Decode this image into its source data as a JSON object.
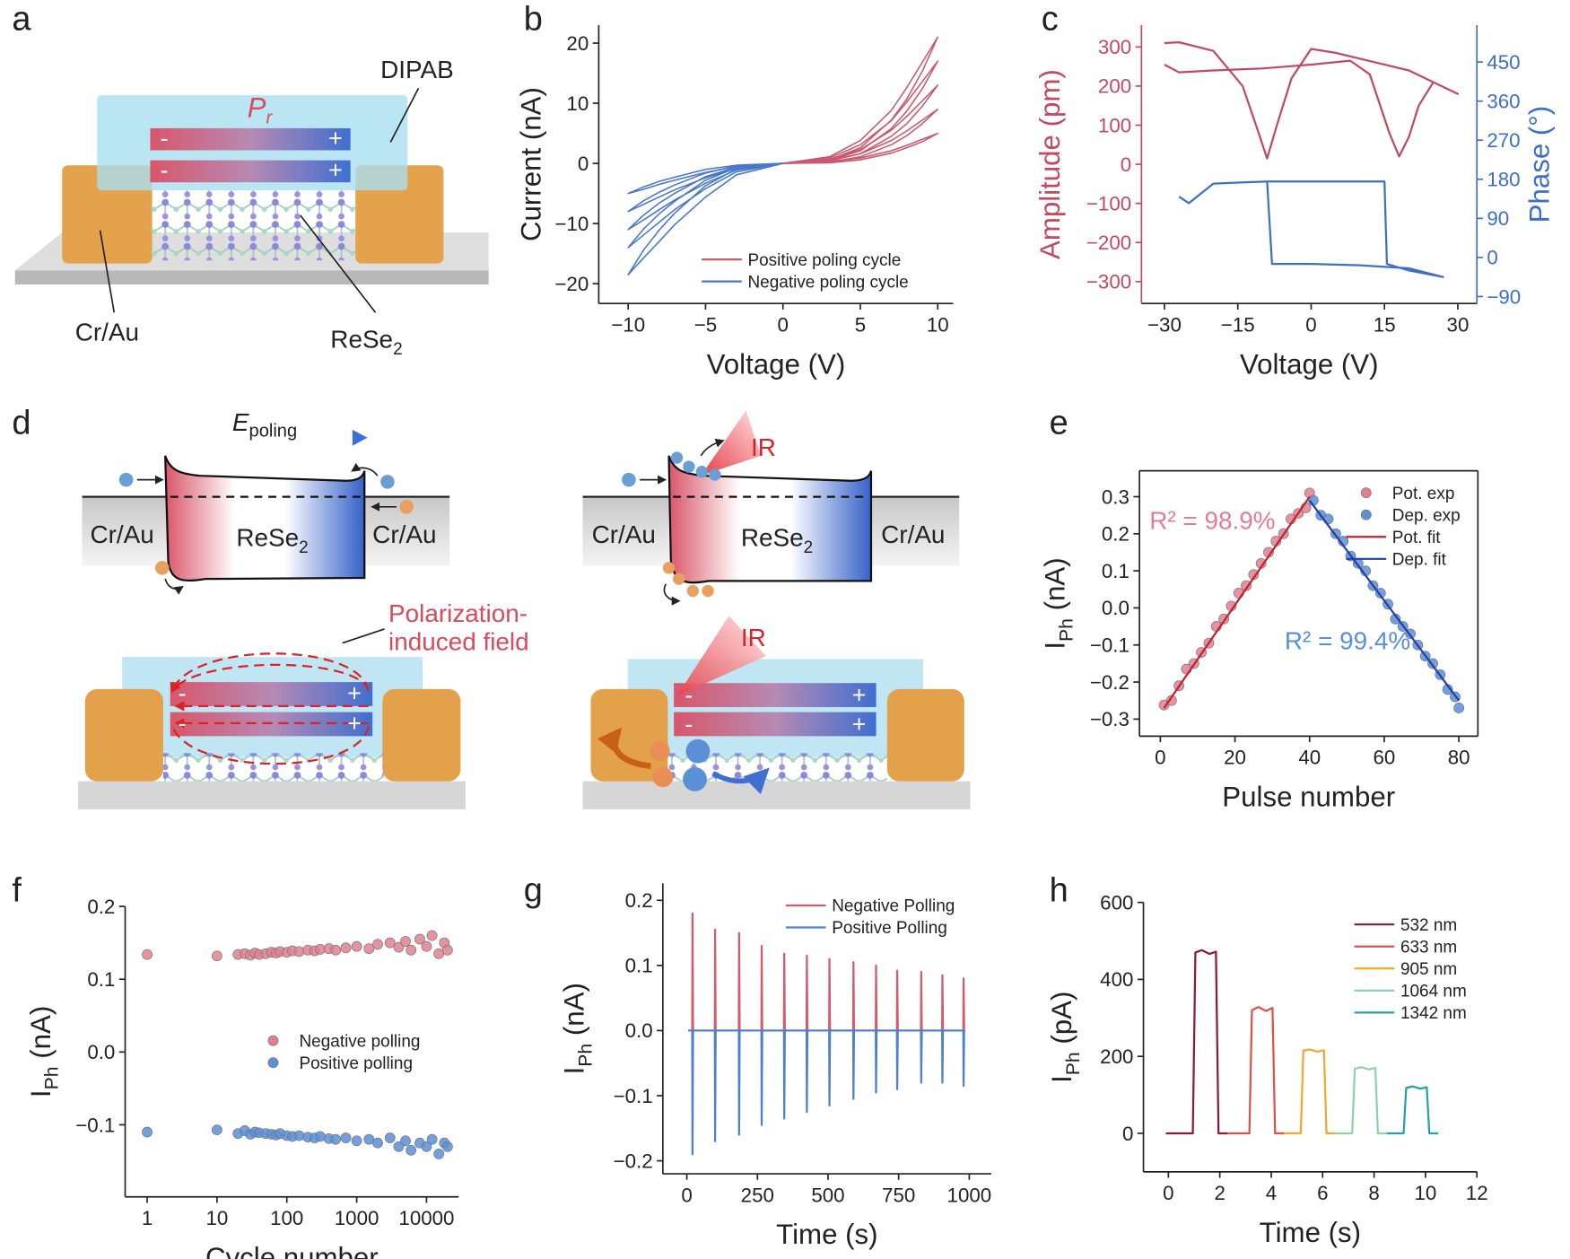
{
  "panel_labels": [
    "a",
    "b",
    "c",
    "d",
    "e",
    "f",
    "g",
    "h"
  ],
  "diagram_a": {
    "top_layer": "DIPAB",
    "polarization": "P",
    "polarization_sub": "r",
    "electrode": "Cr/Au",
    "channel": "ReSe",
    "channel_sub": "2",
    "minus": "-",
    "plus": "+"
  },
  "diagram_d": {
    "field": "E",
    "field_sub": "poling",
    "electrode": "Cr/Au",
    "channel": "ReSe",
    "channel_sub": "2",
    "light": "IR",
    "induced_field": [
      "Polarization-",
      "induced field"
    ],
    "minus": "-",
    "plus": "+"
  },
  "chart_data": [
    {
      "type": "line",
      "xlabel": "Voltage (V)",
      "ylabel": "Current (nA)",
      "xlim": [
        -11.9,
        11
      ],
      "ylim": [
        -23.3,
        23
      ],
      "xticks": [
        {
          "value": -10,
          "label": "−10"
        },
        {
          "value": -5,
          "label": "−5"
        },
        0,
        5,
        10
      ],
      "yticks": [
        20,
        10,
        0,
        {
          "value": -10,
          "label": "−10"
        },
        {
          "value": -20,
          "label": "−20"
        }
      ],
      "legend": "lower right",
      "series": [
        {
          "name": "Positive poling cycle",
          "color": "#c9596e",
          "x": [
            0,
            3,
            5,
            7,
            8,
            9,
            10,
            9,
            8,
            7,
            5,
            3,
            0
          ],
          "loops": [
            [
              0,
              0.1,
              0.6,
              1.7,
              2.6,
              3.6,
              5,
              4,
              3,
              2.1,
              0.9,
              0.3,
              0
            ],
            [
              0,
              0.2,
              1.1,
              3.1,
              4.6,
              6.6,
              9,
              7.2,
              5.4,
              3.8,
              1.6,
              0.5,
              0
            ],
            [
              0,
              0.4,
              1.6,
              4.5,
              6.6,
              9.5,
              13,
              10.4,
              7.8,
              5.5,
              2.3,
              0.7,
              0
            ],
            [
              0,
              0.5,
              2.1,
              5.8,
              8.7,
              12.4,
              17,
              13.6,
              10.2,
              7.1,
              3.1,
              0.9,
              0
            ],
            [
              0,
              0.6,
              2.6,
              7.2,
              10.7,
              15.3,
              21,
              16.8,
              12.6,
              8.8,
              3.8,
              1.1,
              0
            ]
          ]
        },
        {
          "name": "Negative poling cycle",
          "color": "#4a78c8",
          "x": [
            0,
            -3,
            -5,
            -7,
            -8,
            -9,
            -10,
            -9,
            -8,
            -7,
            -5,
            -3,
            0
          ],
          "loops": [
            [
              0,
              -0.3,
              -1,
              -2.3,
              -3,
              -3.9,
              -5,
              -4.3,
              -3.5,
              -2.8,
              -1.5,
              -0.5,
              0
            ],
            [
              0,
              -0.4,
              -1.6,
              -3.6,
              -4.8,
              -6.2,
              -8,
              -6.8,
              -5.6,
              -4.4,
              -2.4,
              -0.8,
              0
            ],
            [
              0,
              -0.6,
              -2.2,
              -5,
              -6.6,
              -8.6,
              -11,
              -9.4,
              -7.7,
              -6.1,
              -3.3,
              -1.1,
              0
            ],
            [
              0,
              -0.7,
              -2.8,
              -6.3,
              -8.4,
              -10.9,
              -14,
              -11.9,
              -9.8,
              -7.7,
              -4.2,
              -1.4,
              0
            ],
            [
              0,
              -0.9,
              -3.7,
              -8.3,
              -11.1,
              -14.4,
              -18.5,
              -15.7,
              -13,
              -10.2,
              -5.6,
              -1.9,
              0
            ]
          ]
        }
      ]
    },
    {
      "type": "line",
      "xlabel": "Voltage (V)",
      "ylabel": "Amplitude (pm)",
      "y2label": "Phase (°)",
      "xlim": [
        -34.7,
        33.9
      ],
      "ylim": [
        -356,
        356
      ],
      "y2lim": [
        -106,
        535
      ],
      "xticks": [
        {
          "value": -30,
          "label": "−30"
        },
        {
          "value": -15,
          "label": "−15"
        },
        0,
        15,
        30
      ],
      "yticks": [
        300,
        200,
        100,
        0,
        {
          "value": -100,
          "label": "−100"
        },
        {
          "value": -200,
          "label": "−200"
        },
        {
          "value": -300,
          "label": "−300"
        }
      ],
      "y2ticks": [
        450,
        360,
        270,
        180,
        90,
        0,
        {
          "value": -90,
          "label": "−90"
        }
      ],
      "series": [
        {
          "color": "#c04a62",
          "x": [
            -30,
            -27,
            -20,
            -14,
            -11,
            -9,
            -7,
            -4,
            0,
            5,
            10,
            15,
            20,
            25,
            30,
            25,
            22,
            20,
            18,
            16,
            12,
            8,
            0,
            -10,
            -20,
            -27,
            -30
          ],
          "values": [
            310,
            312,
            290,
            200,
            90,
            15,
            100,
            220,
            295,
            285,
            270,
            255,
            240,
            210,
            180,
            210,
            150,
            70,
            20,
            80,
            230,
            265,
            255,
            245,
            240,
            235,
            255
          ]
        },
        {
          "color": "#3f6fc4",
          "axis": "y2",
          "x": [
            -27,
            -25,
            -20,
            -9,
            0,
            15,
            15.5,
            20,
            27,
            20,
            10,
            0,
            -8,
            -9
          ],
          "values": [
            140,
            125,
            170,
            175,
            175,
            175,
            -15,
            -30,
            -45,
            -25,
            -18,
            -15,
            -15,
            175
          ]
        }
      ]
    },
    {
      "type": "scatter",
      "xlabel": "Pulse number",
      "ylabel": [
        "I",
        "Ph",
        " (nA)"
      ],
      "xlim": [
        -5.6,
        85.1
      ],
      "ylim": [
        -0.346,
        0.37
      ],
      "xticks": [
        0,
        20,
        40,
        60,
        80
      ],
      "yticks": [
        0.3,
        0.2,
        0.1,
        {
          "value": 0,
          "label": "0.0"
        },
        {
          "value": -0.1,
          "label": "−0.1"
        },
        {
          "value": -0.2,
          "label": "−0.2"
        },
        {
          "value": -0.3,
          "label": "−0.3"
        }
      ],
      "legend": "upper right",
      "annotations": [
        "R² = 98.9%",
        "R² = 99.4%"
      ],
      "series": [
        {
          "name": "Pot. exp",
          "color": "#e07f92",
          "style": "marker",
          "x": [
            1,
            3,
            5,
            7,
            9,
            11,
            13,
            15,
            17,
            19,
            21,
            23,
            25,
            27,
            29,
            31,
            33,
            35,
            37,
            39,
            40
          ],
          "values": [
            -0.262,
            -0.25,
            -0.21,
            -0.165,
            -0.15,
            -0.12,
            -0.095,
            -0.05,
            -0.03,
            0.005,
            0.04,
            0.06,
            0.09,
            0.12,
            0.15,
            0.18,
            0.2,
            0.24,
            0.255,
            0.27,
            0.31
          ]
        },
        {
          "name": "Dep. exp",
          "color": "#5b8fd6",
          "style": "marker",
          "x": [
            41,
            43,
            45,
            47,
            49,
            51,
            53,
            55,
            57,
            59,
            61,
            63,
            65,
            67,
            69,
            71,
            73,
            75,
            77,
            79,
            80
          ],
          "values": [
            0.29,
            0.25,
            0.24,
            0.2,
            0.18,
            0.14,
            0.12,
            0.1,
            0.06,
            0.04,
            0.01,
            -0.03,
            -0.05,
            -0.07,
            -0.1,
            -0.13,
            -0.15,
            -0.18,
            -0.22,
            -0.24,
            -0.27
          ]
        },
        {
          "name": "Pot. fit",
          "color": "#c0232e",
          "style": "line",
          "x": [
            1,
            40
          ],
          "values": [
            -0.27,
            0.3
          ]
        },
        {
          "name": "Dep. fit",
          "color": "#1f3fb0",
          "style": "line",
          "x": [
            40,
            80
          ],
          "values": [
            0.29,
            -0.25
          ]
        }
      ]
    },
    {
      "type": "scatter",
      "xlabel": "Cycle number",
      "ylabel": [
        "I",
        "Ph",
        " (nA)"
      ],
      "xscale": "log",
      "xlim": [
        0.484,
        28770
      ],
      "ylim": [
        -0.199,
        0.2
      ],
      "xticks": [
        1,
        10,
        100,
        1000,
        10000
      ],
      "yticks": [
        0.2,
        0.1,
        {
          "value": 0,
          "label": "0.0"
        },
        {
          "value": -0.1,
          "label": "−0.1"
        }
      ],
      "legend": "center right",
      "series": [
        {
          "name": "Negative polling",
          "color": "#e0808f",
          "style": "marker",
          "x": [
            1,
            10,
            20,
            25,
            30,
            35,
            40,
            50,
            60,
            70,
            80,
            100,
            120,
            150,
            200,
            250,
            300,
            400,
            500,
            700,
            1000,
            1500,
            2000,
            3000,
            4000,
            5000,
            6000,
            8000,
            10000,
            12000,
            15000,
            18000,
            20000
          ],
          "values": [
            0.134,
            0.132,
            0.134,
            0.135,
            0.133,
            0.136,
            0.134,
            0.135,
            0.137,
            0.136,
            0.138,
            0.137,
            0.139,
            0.138,
            0.14,
            0.139,
            0.141,
            0.142,
            0.14,
            0.143,
            0.145,
            0.142,
            0.148,
            0.15,
            0.144,
            0.152,
            0.14,
            0.155,
            0.145,
            0.16,
            0.135,
            0.15,
            0.14
          ]
        },
        {
          "name": "Positive polling",
          "color": "#5b8fd6",
          "style": "marker",
          "x": [
            1,
            10,
            20,
            25,
            30,
            35,
            40,
            50,
            60,
            70,
            80,
            100,
            120,
            150,
            200,
            250,
            300,
            400,
            500,
            700,
            1000,
            1500,
            2000,
            3000,
            4000,
            5000,
            6000,
            8000,
            10000,
            12000,
            15000,
            18000,
            20000
          ],
          "values": [
            -0.11,
            -0.107,
            -0.112,
            -0.108,
            -0.113,
            -0.11,
            -0.111,
            -0.112,
            -0.113,
            -0.114,
            -0.112,
            -0.115,
            -0.116,
            -0.115,
            -0.117,
            -0.118,
            -0.116,
            -0.119,
            -0.12,
            -0.118,
            -0.122,
            -0.12,
            -0.125,
            -0.118,
            -0.13,
            -0.122,
            -0.135,
            -0.125,
            -0.13,
            -0.12,
            -0.14,
            -0.125,
            -0.13
          ]
        }
      ]
    },
    {
      "type": "line",
      "xlabel": "Time (s)",
      "ylabel": [
        "I",
        "Ph",
        " (nA)"
      ],
      "xlim": [
        -85,
        1078
      ],
      "ylim": [
        -0.22,
        0.226
      ],
      "xticks": [
        0,
        250,
        500,
        750,
        1000
      ],
      "yticks": [
        0.2,
        0.1,
        {
          "value": 0,
          "label": "0.0"
        },
        {
          "value": -0.1,
          "label": "−0.1"
        },
        {
          "value": -0.2,
          "label": "−0.2"
        }
      ],
      "legend": "upper right",
      "x": [
        5,
        19,
        20,
        22,
        99,
        100,
        102,
        184,
        185,
        187,
        264,
        265,
        267,
        344,
        345,
        347,
        424,
        425,
        427,
        504,
        505,
        507,
        589,
        590,
        592,
        669,
        670,
        672,
        744,
        745,
        747,
        829,
        830,
        832,
        904,
        905,
        907,
        979,
        980,
        982,
        985
      ],
      "series": [
        {
          "name": "Negative Polling",
          "color": "#d25b6e",
          "values": [
            0,
            0,
            0.18,
            0,
            0,
            0.155,
            0,
            0,
            0.15,
            0,
            0,
            0.13,
            0,
            0,
            0.118,
            0,
            0,
            0.115,
            0,
            0,
            0.11,
            0,
            0,
            0.105,
            0,
            0,
            0.1,
            0,
            0,
            0.092,
            0,
            0,
            0.09,
            0,
            0,
            0.085,
            0,
            0,
            0.08,
            0,
            0
          ]
        },
        {
          "name": "Positive Polling",
          "color": "#4f7fd0",
          "values": [
            0,
            0,
            -0.19,
            0,
            0,
            -0.17,
            0,
            0,
            -0.16,
            0,
            0,
            -0.145,
            0,
            0,
            -0.135,
            0,
            0,
            -0.125,
            0,
            0,
            -0.115,
            0,
            0,
            -0.105,
            0,
            0,
            -0.095,
            0,
            0,
            -0.09,
            0,
            0,
            -0.08,
            0,
            0,
            -0.08,
            0,
            0,
            -0.085,
            0,
            0
          ]
        }
      ]
    },
    {
      "type": "line",
      "xlabel": "Time (s)",
      "ylabel": [
        "I",
        "Ph",
        " (pA)"
      ],
      "xlim": [
        -0.97,
        12
      ],
      "ylim": [
        -100,
        600
      ],
      "xticks": [
        0,
        2,
        4,
        6,
        8,
        10,
        12
      ],
      "yticks": [
        600,
        400,
        200,
        0
      ],
      "legend": "upper right",
      "series": [
        {
          "name": "532 nm",
          "color": "#8b1a34",
          "x": [
            -0.1,
            0.95,
            1.05,
            1.3,
            1.6,
            1.85,
            1.95,
            2.3
          ],
          "values": [
            0,
            0,
            470,
            476,
            466,
            472,
            0,
            0
          ]
        },
        {
          "name": "633 nm",
          "color": "#d9534a",
          "x": [
            2.3,
            3.15,
            3.25,
            3.5,
            3.8,
            4.05,
            4.15,
            4.5
          ],
          "values": [
            0,
            0,
            320,
            328,
            318,
            326,
            0,
            0
          ]
        },
        {
          "name": "905 nm",
          "color": "#f0a830",
          "x": [
            4.5,
            5.15,
            5.25,
            5.5,
            5.8,
            6.05,
            6.15,
            6.5
          ],
          "values": [
            0,
            0,
            215,
            218,
            212,
            216,
            0,
            0
          ]
        },
        {
          "name": "1064 nm",
          "color": "#8fd1a8",
          "x": [
            6.5,
            7.15,
            7.25,
            7.5,
            7.8,
            8.05,
            8.15,
            8.5
          ],
          "values": [
            0,
            0,
            168,
            172,
            166,
            170,
            0,
            0
          ]
        },
        {
          "name": "1342 nm",
          "color": "#2a9fa8",
          "x": [
            8.5,
            9.15,
            9.25,
            9.5,
            9.8,
            10.05,
            10.15,
            10.5
          ],
          "values": [
            0,
            0,
            118,
            122,
            116,
            120,
            0,
            0
          ]
        }
      ]
    }
  ]
}
